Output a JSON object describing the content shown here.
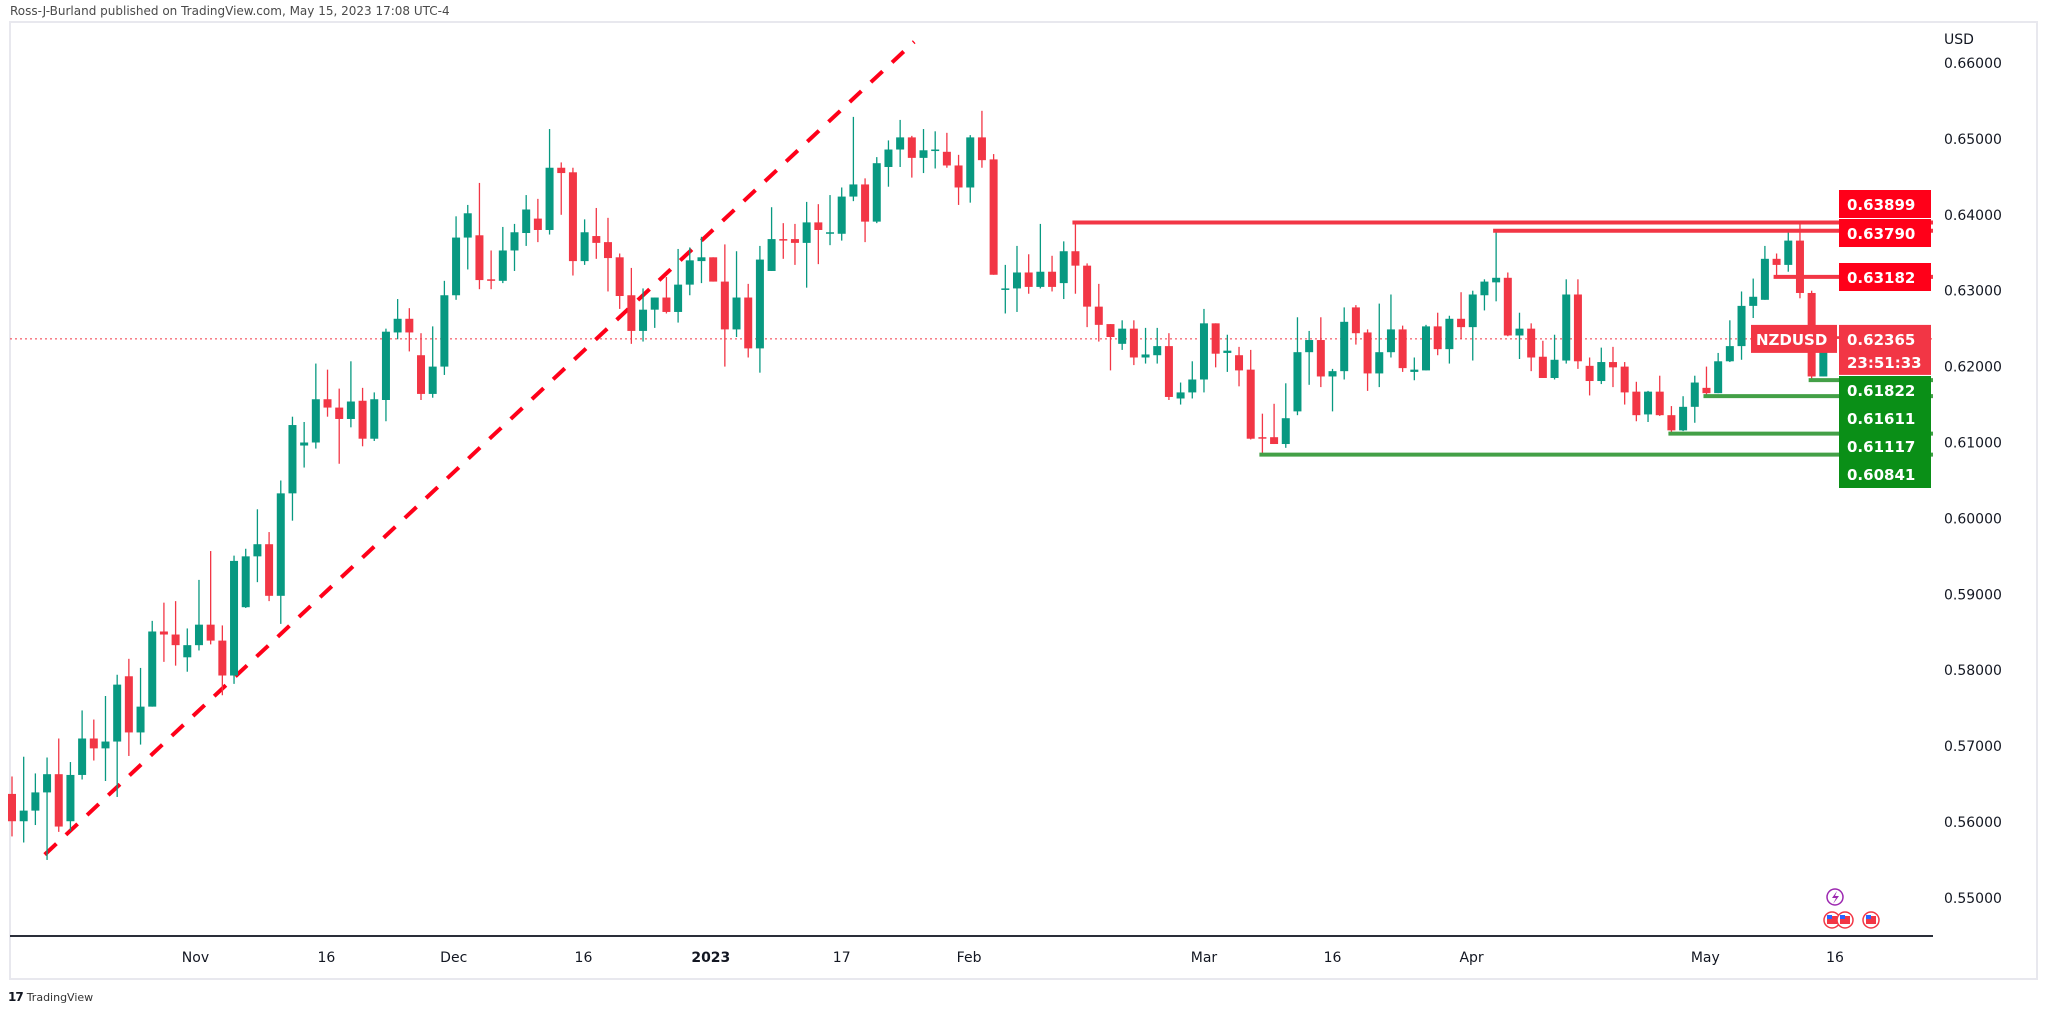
{
  "header": {
    "text": "Ross-J-Burland published on TradingView.com, May 15, 2023 17:08 UTC-4"
  },
  "footer": {
    "logo_text": "TradingView"
  },
  "colors": {
    "up": "#089981",
    "down": "#F23645",
    "resistance": "#F23645",
    "support": "#43A047",
    "tag_red": "#FF0019",
    "tag_green": "#0A8F17",
    "trendline": "#FF0019",
    "event_purple": "#9C27B0"
  },
  "chart_data": {
    "type": "candlestick",
    "symbol": "NZDUSD",
    "currency": "USD",
    "timeframe": "1D",
    "current_price": 0.62365,
    "countdown": "23:51:33",
    "ylim": [
      0.545,
      0.665
    ],
    "y_ticks": [
      "0.66000",
      "0.65000",
      "0.64000",
      "0.63000",
      "0.62000",
      "0.61000",
      "0.60000",
      "0.59000",
      "0.58000",
      "0.57000",
      "0.56000",
      "0.55000"
    ],
    "x_ticks": [
      {
        "label": "Nov",
        "bar": 15.7
      },
      {
        "label": "16",
        "bar": 26.9
      },
      {
        "label": "Dec",
        "bar": 37.8
      },
      {
        "label": "16",
        "bar": 48.9
      },
      {
        "label": "2023",
        "bar": 59.8,
        "bold": true
      },
      {
        "label": "17",
        "bar": 71.0
      },
      {
        "label": "Feb",
        "bar": 81.9
      },
      {
        "label": "Mar",
        "bar": 102.0
      },
      {
        "label": "16",
        "bar": 113.0
      },
      {
        "label": "Apr",
        "bar": 124.9
      },
      {
        "label": "May",
        "bar": 144.9
      },
      {
        "label": "16",
        "bar": 156.0
      }
    ],
    "ohlc": [
      [
        0.5637,
        0.566,
        0.5581,
        0.5601
      ],
      [
        0.5601,
        0.5686,
        0.5573,
        0.5615
      ],
      [
        0.5615,
        0.5664,
        0.5596,
        0.5639
      ],
      [
        0.5639,
        0.5685,
        0.555,
        0.5663
      ],
      [
        0.5663,
        0.571,
        0.5587,
        0.5594
      ],
      [
        0.5601,
        0.5679,
        0.5588,
        0.5662
      ],
      [
        0.5662,
        0.5747,
        0.5656,
        0.571
      ],
      [
        0.571,
        0.5735,
        0.5681,
        0.5697
      ],
      [
        0.5697,
        0.5766,
        0.5654,
        0.5706
      ],
      [
        0.5706,
        0.5794,
        0.5633,
        0.5781
      ],
      [
        0.5792,
        0.5815,
        0.5687,
        0.5718
      ],
      [
        0.5718,
        0.5803,
        0.5702,
        0.5752
      ],
      [
        0.5752,
        0.5865,
        0.5752,
        0.5851
      ],
      [
        0.5851,
        0.5889,
        0.5811,
        0.5847
      ],
      [
        0.5847,
        0.5891,
        0.5806,
        0.5833
      ],
      [
        0.5817,
        0.5855,
        0.5798,
        0.5833
      ],
      [
        0.5833,
        0.5919,
        0.5826,
        0.586
      ],
      [
        0.586,
        0.5957,
        0.5834,
        0.5839
      ],
      [
        0.5839,
        0.5859,
        0.5767,
        0.5793
      ],
      [
        0.5793,
        0.5951,
        0.5782,
        0.5944
      ],
      [
        0.5883,
        0.596,
        0.5882,
        0.595
      ],
      [
        0.595,
        0.6012,
        0.5916,
        0.5966
      ],
      [
        0.5966,
        0.5982,
        0.5891,
        0.5898
      ],
      [
        0.5898,
        0.605,
        0.5861,
        0.6033
      ],
      [
        0.6033,
        0.6134,
        0.5997,
        0.6123
      ],
      [
        0.6096,
        0.6127,
        0.6067,
        0.61
      ],
      [
        0.61,
        0.6204,
        0.6092,
        0.6157
      ],
      [
        0.6157,
        0.6196,
        0.6134,
        0.6146
      ],
      [
        0.6146,
        0.6171,
        0.6072,
        0.6131
      ],
      [
        0.6131,
        0.6207,
        0.612,
        0.6154
      ],
      [
        0.6155,
        0.6172,
        0.6095,
        0.6105
      ],
      [
        0.6105,
        0.6166,
        0.6102,
        0.6157
      ],
      [
        0.6156,
        0.625,
        0.6128,
        0.6246
      ],
      [
        0.6245,
        0.6289,
        0.6236,
        0.6263
      ],
      [
        0.6263,
        0.6277,
        0.622,
        0.6245
      ],
      [
        0.6215,
        0.6244,
        0.6156,
        0.6164
      ],
      [
        0.6164,
        0.6253,
        0.6159,
        0.62
      ],
      [
        0.62,
        0.6313,
        0.6189,
        0.6294
      ],
      [
        0.6294,
        0.6398,
        0.6288,
        0.637
      ],
      [
        0.637,
        0.6413,
        0.6328,
        0.6402
      ],
      [
        0.6373,
        0.6442,
        0.6302,
        0.6314
      ],
      [
        0.6315,
        0.6353,
        0.6302,
        0.6313
      ],
      [
        0.6313,
        0.6384,
        0.631,
        0.6353
      ],
      [
        0.6353,
        0.6388,
        0.6326,
        0.6377
      ],
      [
        0.6376,
        0.6426,
        0.6359,
        0.6407
      ],
      [
        0.6395,
        0.6421,
        0.6364,
        0.638
      ],
      [
        0.638,
        0.6513,
        0.6374,
        0.6462
      ],
      [
        0.6462,
        0.6469,
        0.64,
        0.6455
      ],
      [
        0.6456,
        0.6462,
        0.632,
        0.6339
      ],
      [
        0.6339,
        0.6394,
        0.6334,
        0.6377
      ],
      [
        0.6372,
        0.6409,
        0.6342,
        0.6363
      ],
      [
        0.6364,
        0.6396,
        0.6299,
        0.6343
      ],
      [
        0.6344,
        0.6349,
        0.6276,
        0.6293
      ],
      [
        0.6294,
        0.633,
        0.623,
        0.6247
      ],
      [
        0.6247,
        0.6303,
        0.6233,
        0.6275
      ],
      [
        0.6275,
        0.6291,
        0.6251,
        0.6291
      ],
      [
        0.6291,
        0.6318,
        0.627,
        0.6272
      ],
      [
        0.6272,
        0.6355,
        0.6258,
        0.6308
      ],
      [
        0.6308,
        0.6357,
        0.6294,
        0.634
      ],
      [
        0.6339,
        0.6371,
        0.631,
        0.6344
      ],
      [
        0.6344,
        0.6344,
        0.6312,
        0.6312
      ],
      [
        0.6312,
        0.6361,
        0.62,
        0.6249
      ],
      [
        0.6249,
        0.6352,
        0.6239,
        0.6291
      ],
      [
        0.6291,
        0.6309,
        0.6212,
        0.6224
      ],
      [
        0.6224,
        0.6359,
        0.6192,
        0.6341
      ],
      [
        0.6326,
        0.641,
        0.6326,
        0.6368
      ],
      [
        0.6368,
        0.6389,
        0.6342,
        0.6367
      ],
      [
        0.6368,
        0.6388,
        0.6334,
        0.6363
      ],
      [
        0.6363,
        0.6417,
        0.6304,
        0.639
      ],
      [
        0.639,
        0.6414,
        0.6335,
        0.638
      ],
      [
        0.6375,
        0.6426,
        0.636,
        0.6377
      ],
      [
        0.6375,
        0.6436,
        0.6366,
        0.6424
      ],
      [
        0.6424,
        0.6529,
        0.6418,
        0.644
      ],
      [
        0.644,
        0.6448,
        0.6364,
        0.6391
      ],
      [
        0.6391,
        0.6476,
        0.6389,
        0.6468
      ],
      [
        0.6463,
        0.6498,
        0.6437,
        0.6486
      ],
      [
        0.6486,
        0.6525,
        0.6463,
        0.6502
      ],
      [
        0.6502,
        0.6504,
        0.6449,
        0.6475
      ],
      [
        0.6475,
        0.6513,
        0.6455,
        0.6485
      ],
      [
        0.6484,
        0.651,
        0.6461,
        0.6486
      ],
      [
        0.6483,
        0.6508,
        0.6462,
        0.6465
      ],
      [
        0.6465,
        0.6479,
        0.6413,
        0.6436
      ],
      [
        0.6436,
        0.6505,
        0.6416,
        0.6502
      ],
      [
        0.6502,
        0.6537,
        0.6462,
        0.6472
      ],
      [
        0.6473,
        0.648,
        0.6321,
        0.6321
      ],
      [
        0.6302,
        0.6334,
        0.627,
        0.6303
      ],
      [
        0.6303,
        0.6359,
        0.6272,
        0.6324
      ],
      [
        0.6324,
        0.6348,
        0.6296,
        0.6305
      ],
      [
        0.6305,
        0.6388,
        0.6303,
        0.6325
      ],
      [
        0.6325,
        0.6346,
        0.6299,
        0.6305
      ],
      [
        0.631,
        0.6365,
        0.6289,
        0.6352
      ],
      [
        0.6352,
        0.63899,
        0.6296,
        0.6333
      ],
      [
        0.6333,
        0.6336,
        0.6252,
        0.6279
      ],
      [
        0.6279,
        0.6309,
        0.6233,
        0.6255
      ],
      [
        0.6256,
        0.6256,
        0.6195,
        0.6239
      ],
      [
        0.623,
        0.6261,
        0.6222,
        0.625
      ],
      [
        0.625,
        0.6261,
        0.6202,
        0.6212
      ],
      [
        0.6212,
        0.6251,
        0.6204,
        0.6216
      ],
      [
        0.6215,
        0.6251,
        0.6204,
        0.6227
      ],
      [
        0.6227,
        0.6244,
        0.6156,
        0.616
      ],
      [
        0.6158,
        0.6179,
        0.615,
        0.6166
      ],
      [
        0.6166,
        0.6207,
        0.6158,
        0.6183
      ],
      [
        0.6183,
        0.6276,
        0.6166,
        0.6257
      ],
      [
        0.6257,
        0.6257,
        0.6199,
        0.6217
      ],
      [
        0.6218,
        0.6242,
        0.6193,
        0.6221
      ],
      [
        0.6215,
        0.6226,
        0.6174,
        0.6195
      ],
      [
        0.6196,
        0.6222,
        0.6104,
        0.6105
      ],
      [
        0.6107,
        0.6138,
        0.60841,
        0.6106
      ],
      [
        0.6107,
        0.6151,
        0.6098,
        0.6098
      ],
      [
        0.6098,
        0.6178,
        0.6093,
        0.6132
      ],
      [
        0.6141,
        0.6265,
        0.6136,
        0.6219
      ],
      [
        0.6219,
        0.6247,
        0.6176,
        0.6235
      ],
      [
        0.6235,
        0.6265,
        0.6173,
        0.6187
      ],
      [
        0.6187,
        0.6197,
        0.6141,
        0.6194
      ],
      [
        0.6194,
        0.6278,
        0.6183,
        0.6259
      ],
      [
        0.6278,
        0.6281,
        0.6229,
        0.6244
      ],
      [
        0.6245,
        0.6249,
        0.6168,
        0.6191
      ],
      [
        0.6191,
        0.6283,
        0.6173,
        0.6219
      ],
      [
        0.6219,
        0.6295,
        0.6212,
        0.6249
      ],
      [
        0.6249,
        0.6254,
        0.6193,
        0.6198
      ],
      [
        0.6193,
        0.6212,
        0.6182,
        0.6196
      ],
      [
        0.6195,
        0.6255,
        0.6195,
        0.6253
      ],
      [
        0.6253,
        0.6271,
        0.6215,
        0.6223
      ],
      [
        0.6223,
        0.6267,
        0.6204,
        0.6263
      ],
      [
        0.6263,
        0.6298,
        0.6237,
        0.6252
      ],
      [
        0.6252,
        0.63,
        0.6208,
        0.6295
      ],
      [
        0.6294,
        0.6315,
        0.6274,
        0.6312
      ],
      [
        0.6311,
        0.6379,
        0.6286,
        0.6317
      ],
      [
        0.6317,
        0.6324,
        0.624,
        0.6241
      ],
      [
        0.6241,
        0.6271,
        0.621,
        0.625
      ],
      [
        0.625,
        0.6257,
        0.6194,
        0.6212
      ],
      [
        0.6213,
        0.6234,
        0.6185,
        0.6185
      ],
      [
        0.6185,
        0.6242,
        0.6183,
        0.6209
      ],
      [
        0.6208,
        0.6315,
        0.6204,
        0.6295
      ],
      [
        0.6295,
        0.6315,
        0.6197,
        0.6207
      ],
      [
        0.6201,
        0.6212,
        0.6162,
        0.6181
      ],
      [
        0.6181,
        0.6225,
        0.6177,
        0.6206
      ],
      [
        0.6206,
        0.6226,
        0.6173,
        0.6199
      ],
      [
        0.62,
        0.6206,
        0.615,
        0.6166
      ],
      [
        0.6167,
        0.618,
        0.6128,
        0.6136
      ],
      [
        0.6137,
        0.6168,
        0.6127,
        0.6167
      ],
      [
        0.6167,
        0.6188,
        0.6135,
        0.6136
      ],
      [
        0.6136,
        0.6148,
        0.61117,
        0.6116
      ],
      [
        0.6116,
        0.6161,
        0.6115,
        0.6147
      ],
      [
        0.6147,
        0.6188,
        0.6126,
        0.6179
      ],
      [
        0.6172,
        0.62,
        0.61611,
        0.6165
      ],
      [
        0.6165,
        0.6218,
        0.6165,
        0.6207
      ],
      [
        0.6207,
        0.6261,
        0.6206,
        0.6227
      ],
      [
        0.6227,
        0.6299,
        0.6209,
        0.628
      ],
      [
        0.628,
        0.6316,
        0.6264,
        0.6292
      ],
      [
        0.6288,
        0.6359,
        0.6288,
        0.6342
      ],
      [
        0.6342,
        0.6349,
        0.63182,
        0.6334
      ],
      [
        0.6334,
        0.638,
        0.6325,
        0.6366
      ],
      [
        0.6366,
        0.63899,
        0.629,
        0.6297
      ],
      [
        0.6297,
        0.63,
        0.61822,
        0.6187
      ],
      [
        0.6187,
        0.6243,
        0.6187,
        0.624
      ],
      [
        0.624,
        0.624,
        0.623,
        0.62365
      ]
    ],
    "levels": [
      {
        "label": "0.63899",
        "price": 0.63899,
        "from_bar": 91,
        "kind": "resistance"
      },
      {
        "label": "0.63790",
        "price": 0.6379,
        "from_bar": 127,
        "kind": "resistance"
      },
      {
        "label": "0.63182",
        "price": 0.63182,
        "from_bar": 151,
        "kind": "resistance"
      },
      {
        "label": "0.61822",
        "price": 0.61822,
        "from_bar": 154,
        "kind": "support"
      },
      {
        "label": "0.61611",
        "price": 0.61611,
        "from_bar": 145,
        "kind": "support"
      },
      {
        "label": "0.61117",
        "price": 0.61117,
        "from_bar": 142,
        "kind": "support"
      },
      {
        "label": "0.60841",
        "price": 0.60841,
        "from_bar": 107,
        "kind": "support"
      }
    ],
    "trendline": {
      "from": [
        2.8,
        0.5557
      ],
      "to": [
        77.2,
        0.6628
      ],
      "style": "dashed"
    },
    "price_label": "0.62365",
    "events": [
      {
        "type": "lightning-event",
        "bar": 156
      },
      {
        "type": "us-flag-event",
        "bar": 155.6
      },
      {
        "type": "us-flag-event",
        "bar": 156.7
      },
      {
        "type": "us-flag-event",
        "bar": 159
      }
    ]
  }
}
